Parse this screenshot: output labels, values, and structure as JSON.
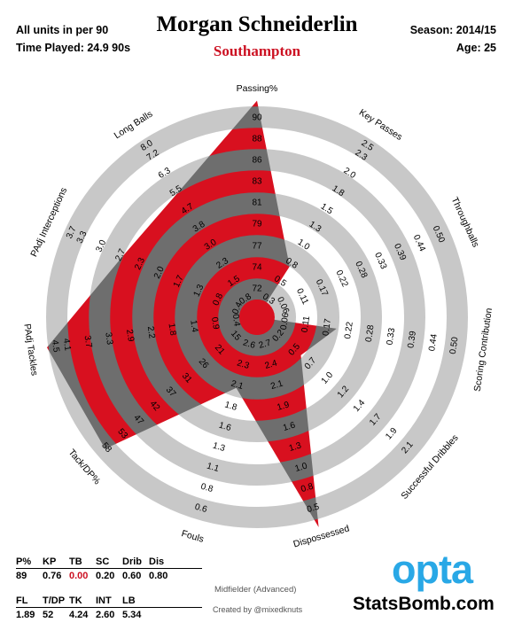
{
  "header": {
    "units_note": "All units in per 90",
    "time_played": "Time Played: 24.9 90s",
    "player": "Morgan Schneiderlin",
    "team": "Southampton",
    "season": "Season: 2014/15",
    "age": "Age: 25"
  },
  "colors": {
    "ring_gray": "#c8c8c8",
    "ring_red": "#d8101f",
    "overlay": "#6e6e6e",
    "team": "#cc1122",
    "opta": "#29a8e6",
    "zero_value": "#cc1122"
  },
  "chart_data": {
    "type": "radar",
    "axes": [
      {
        "name": "Passing%",
        "ticks": [
          "72",
          "74",
          "77",
          "79",
          "81",
          "83",
          "86",
          "88",
          "90"
        ],
        "value": 89
      },
      {
        "name": "Key Passes",
        "ticks": [
          "0.3",
          "0.5",
          "0.8",
          "1.0",
          "1.3",
          "1.5",
          "1.8",
          "2.0",
          "2.3",
          "2.5"
        ],
        "value": 0.76
      },
      {
        "name": "Throughballs",
        "ticks": [
          "0.06",
          "0.11",
          "0.17",
          "0.22",
          "0.28",
          "0.33",
          "0.39",
          "0.44",
          "0.50"
        ],
        "value": 0.0
      },
      {
        "name": "Scoring Contribution",
        "ticks": [
          "0.06",
          "0.11",
          "0.17",
          "0.22",
          "0.28",
          "0.33",
          "0.39",
          "0.44",
          "0.50"
        ],
        "value": 0.2
      },
      {
        "name": "Successful Dribbles",
        "ticks": [
          "0.2",
          "0.5",
          "0.7",
          "1.0",
          "1.2",
          "1.4",
          "1.7",
          "1.9",
          "2.1"
        ],
        "value": 0.6
      },
      {
        "name": "Dispossessed",
        "ticks": [
          "2.7",
          "2.4",
          "2.1",
          "1.9",
          "1.6",
          "1.3",
          "1.0",
          "0.8",
          "0.5"
        ],
        "value": 0.8
      },
      {
        "name": "Fouls",
        "ticks": [
          "2.6",
          "2.3",
          "2.1",
          "1.8",
          "1.6",
          "1.3",
          "1.1",
          "0.8",
          "0.6"
        ],
        "value": 1.89
      },
      {
        "name": "Tack/DP%",
        "ticks": [
          "15",
          "21",
          "26",
          "31",
          "37",
          "42",
          "47",
          "53",
          "58"
        ],
        "value": 52
      },
      {
        "name": "PAdj Tackles",
        "ticks": [
          "0.4",
          "0.9",
          "1.4",
          "1.8",
          "2.2",
          "2.9",
          "3.3",
          "3.7",
          "4.1",
          "4.5"
        ],
        "value": 4.24
      },
      {
        "name": "PAdj Interceptions",
        "ticks": [
          "0.4",
          "0.8",
          "1.3",
          "1.7",
          "2.0",
          "2.3",
          "2.7",
          "3.0",
          "3.3",
          "3.7"
        ],
        "value": 2.6
      },
      {
        "name": "Long Balls",
        "ticks": [
          "0.8",
          "1.5",
          "2.3",
          "3.0",
          "3.8",
          "4.7",
          "5.5",
          "6.3",
          "7.2",
          "8.0"
        ],
        "value": 5.34
      }
    ],
    "polygon_fraction": [
      0.97,
      0.27,
      0.0,
      0.36,
      0.26,
      0.98,
      0.33,
      0.9,
      0.95,
      0.66,
      0.66
    ]
  },
  "stats": {
    "row1_labels": [
      "P%",
      "KP",
      "TB",
      "SC",
      "Drib",
      "Dis"
    ],
    "row1_values": [
      "89",
      "0.76",
      "0.00",
      "0.20",
      "0.60",
      "0.80"
    ],
    "row2_labels": [
      "FL",
      "T/DP",
      "TK",
      "INT",
      "LB"
    ],
    "row2_values": [
      "1.89",
      "52",
      "4.24",
      "2.60",
      "5.34"
    ]
  },
  "footer": {
    "role": "Midfielder (Advanced)",
    "credit": "Created by @mixedknuts",
    "opta": "opta",
    "statsbomb": "StatsBomb.com"
  }
}
